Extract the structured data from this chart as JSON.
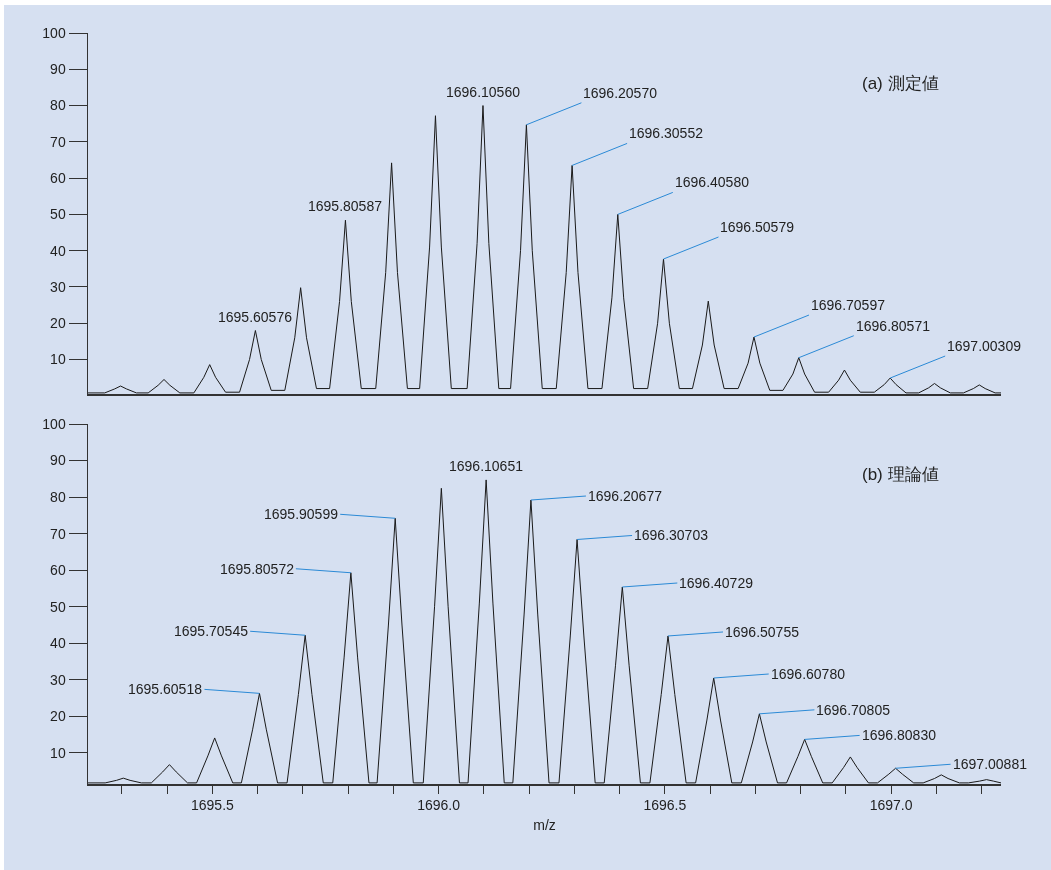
{
  "chart_data": [
    {
      "type": "line",
      "title": "(a) 測定値",
      "xlim": [
        1695.225,
        1697.243
      ],
      "ylim": [
        0.5,
        100
      ],
      "yticks": [
        10,
        20,
        30,
        40,
        50,
        60,
        70,
        80,
        90,
        100
      ],
      "tick_labels": "y",
      "series": [
        {
          "color": "#1a1a1a",
          "x": [
            1695.225,
            1695.262,
            1695.284,
            1695.297,
            1695.31,
            1695.332,
            1695.358,
            1695.38,
            1695.393,
            1695.406,
            1695.428,
            1695.459,
            1695.481,
            1695.494,
            1695.507,
            1695.529,
            1695.56,
            1695.582,
            1695.595,
            1695.608,
            1695.63,
            1695.66,
            1695.682,
            1695.695,
            1695.708,
            1695.73,
            1695.759,
            1695.781,
            1695.794,
            1695.807,
            1695.829,
            1695.861,
            1695.883,
            1695.896,
            1695.909,
            1695.931,
            1695.958,
            1695.98,
            1695.993,
            1696.006,
            1696.028,
            1696.063,
            1696.085,
            1696.098,
            1696.111,
            1696.133,
            1696.159,
            1696.181,
            1696.194,
            1696.207,
            1696.229,
            1696.26,
            1696.282,
            1696.295,
            1696.308,
            1696.33,
            1696.361,
            1696.383,
            1696.396,
            1696.409,
            1696.431,
            1696.462,
            1696.484,
            1696.497,
            1696.51,
            1696.532,
            1696.561,
            1696.583,
            1696.596,
            1696.609,
            1696.631,
            1696.662,
            1696.684,
            1696.697,
            1696.71,
            1696.732,
            1696.761,
            1696.783,
            1696.796,
            1696.809,
            1696.831,
            1696.862,
            1696.884,
            1696.897,
            1696.91,
            1696.932,
            1696.963,
            1696.985,
            1696.998,
            1697.011,
            1697.033,
            1697.061,
            1697.083,
            1697.096,
            1697.109,
            1697.131,
            1697.16,
            1697.182,
            1697.195,
            1697.208,
            1697.23,
            1697.243
          ],
          "values": [
            0.8,
            0.8,
            1.9,
            2.7,
            1.9,
            0.8,
            0.8,
            2.9,
            4.5,
            2.9,
            0.8,
            0.8,
            5.1,
            8.6,
            5.1,
            1.0,
            1.0,
            10.0,
            18.0,
            10.0,
            1.5,
            1.5,
            16.0,
            29.8,
            16.0,
            2.0,
            2.0,
            26.0,
            48.4,
            26.0,
            2.0,
            2.0,
            34.0,
            64.2,
            34.0,
            2.0,
            2.0,
            41.0,
            77.2,
            41.0,
            2.0,
            2.0,
            42.0,
            80.0,
            42.0,
            2.0,
            2.0,
            40.0,
            74.7,
            40.0,
            2.0,
            2.0,
            34.0,
            63.5,
            34.0,
            2.0,
            2.0,
            27.0,
            50.0,
            27.0,
            2.0,
            2.0,
            20.0,
            37.7,
            20.0,
            2.0,
            2.0,
            14.0,
            26.1,
            14.0,
            2.0,
            2.0,
            9.0,
            16.2,
            9.0,
            1.5,
            1.5,
            6.0,
            10.5,
            6.0,
            1.0,
            1.0,
            4.3,
            7.1,
            4.3,
            1.0,
            1.0,
            3.1,
            4.9,
            3.1,
            0.8,
            0.8,
            2.2,
            3.4,
            2.2,
            0.8,
            0.8,
            2.0,
            3.0,
            2.0,
            0.8,
            0.8
          ]
        }
      ],
      "annotations": [
        {
          "text": "1695.60576",
          "x": 1695.595,
          "y": 18.0
        },
        {
          "text": "1695.80587",
          "x": 1695.794,
          "y": 48.4
        },
        {
          "text": "1696.10560",
          "x": 1696.098,
          "y": 80.0
        },
        {
          "text": "1696.20570",
          "x": 1696.194,
          "y": 74.7
        },
        {
          "text": "1696.30552",
          "x": 1696.295,
          "y": 63.5
        },
        {
          "text": "1696.40580",
          "x": 1696.396,
          "y": 50.0
        },
        {
          "text": "1696.50579",
          "x": 1696.497,
          "y": 37.7
        },
        {
          "text": "1696.70597",
          "x": 1696.697,
          "y": 16.2
        },
        {
          "text": "1696.80571",
          "x": 1696.796,
          "y": 10.5
        },
        {
          "text": "1697.00309",
          "x": 1696.998,
          "y": 4.9
        }
      ]
    },
    {
      "type": "line",
      "title": "(b) 理論値",
      "xlabel": "m/z",
      "xlim": [
        1695.225,
        1697.243
      ],
      "ylim": [
        1.5,
        100
      ],
      "yticks": [
        10,
        20,
        30,
        40,
        50,
        60,
        70,
        80,
        90,
        100
      ],
      "xticks": [
        {
          "value": 1695.3,
          "label": null
        },
        {
          "value": 1695.4,
          "label": null
        },
        1695.5,
        {
          "value": 1695.6,
          "label": null
        },
        {
          "value": 1695.7,
          "label": null
        },
        {
          "value": 1695.8,
          "label": null
        },
        {
          "value": 1695.9,
          "label": null
        },
        {
          "value": 1696,
          "label": "1696.0"
        },
        {
          "value": 1696.1,
          "label": null
        },
        {
          "value": 1696.2,
          "label": null
        },
        {
          "value": 1696.3,
          "label": null
        },
        {
          "value": 1696.4,
          "label": null
        },
        1696.5,
        {
          "value": 1696.6,
          "label": null
        },
        {
          "value": 1696.7,
          "label": null
        },
        {
          "value": 1696.8,
          "label": null
        },
        {
          "value": 1696.9,
          "label": null
        },
        {
          "value": 1697,
          "label": "1697.0"
        },
        {
          "value": 1697.1,
          "label": null
        },
        {
          "value": 1697.2,
          "label": null
        }
      ],
      "series": [
        {
          "color": "#1a1a1a",
          "x": [
            1695.225,
            1695.263,
            1695.288,
            1695.303,
            1695.318,
            1695.343,
            1695.365,
            1695.39,
            1695.405,
            1695.42,
            1695.445,
            1695.465,
            1695.49,
            1695.505,
            1695.52,
            1695.545,
            1695.564,
            1695.589,
            1695.604,
            1695.619,
            1695.644,
            1695.665,
            1695.69,
            1695.705,
            1695.72,
            1695.745,
            1695.766,
            1695.791,
            1695.806,
            1695.821,
            1695.846,
            1695.864,
            1695.889,
            1695.904,
            1695.919,
            1695.944,
            1695.966,
            1695.991,
            1696.006,
            1696.021,
            1696.046,
            1696.065,
            1696.09,
            1696.105,
            1696.12,
            1696.145,
            1696.164,
            1696.189,
            1696.204,
            1696.219,
            1696.244,
            1696.266,
            1696.291,
            1696.306,
            1696.321,
            1696.346,
            1696.366,
            1696.391,
            1696.406,
            1696.421,
            1696.446,
            1696.467,
            1696.492,
            1696.507,
            1696.522,
            1696.547,
            1696.568,
            1696.593,
            1696.608,
            1696.623,
            1696.648,
            1696.669,
            1696.694,
            1696.709,
            1696.724,
            1696.749,
            1696.769,
            1696.794,
            1696.809,
            1696.824,
            1696.849,
            1696.87,
            1696.895,
            1696.91,
            1696.925,
            1696.95,
            1696.97,
            1696.995,
            1697.01,
            1697.025,
            1697.05,
            1697.071,
            1697.096,
            1697.111,
            1697.126,
            1697.151,
            1697.171,
            1697.196,
            1697.211,
            1697.226,
            1697.243
          ],
          "values": [
            1.8,
            1.8,
            2.5,
            3.1,
            2.5,
            1.8,
            1.8,
            4.8,
            6.8,
            4.8,
            1.8,
            1.8,
            9.2,
            14.1,
            9.2,
            1.8,
            1.8,
            16.5,
            26.3,
            16.5,
            1.8,
            1.8,
            26.0,
            42.2,
            26.0,
            1.8,
            1.8,
            36.0,
            59.3,
            36.0,
            1.8,
            1.8,
            45.0,
            74.2,
            45.0,
            1.8,
            1.8,
            50.0,
            82.4,
            50.0,
            1.8,
            1.8,
            51.0,
            84.7,
            51.0,
            1.8,
            1.8,
            48.0,
            79.2,
            48.0,
            1.8,
            1.8,
            42.0,
            68.4,
            42.0,
            1.8,
            1.8,
            34.0,
            55.4,
            34.0,
            1.8,
            1.8,
            26.0,
            42.0,
            26.0,
            1.8,
            1.8,
            19.0,
            30.5,
            19.0,
            1.8,
            1.8,
            13.0,
            20.7,
            13.0,
            1.8,
            1.8,
            9.0,
            13.7,
            9.0,
            1.8,
            1.8,
            6.0,
            8.9,
            6.0,
            1.8,
            1.8,
            4.2,
            5.8,
            4.2,
            1.8,
            1.8,
            3.0,
            4.0,
            3.0,
            1.8,
            1.8,
            2.3,
            2.7,
            2.3,
            1.8
          ]
        }
      ],
      "annotations": [
        {
          "text": "1695.60518",
          "x": 1695.604,
          "y": 26.3
        },
        {
          "text": "1695.70545",
          "x": 1695.705,
          "y": 42.2
        },
        {
          "text": "1695.80572",
          "x": 1695.806,
          "y": 59.3
        },
        {
          "text": "1695.90599",
          "x": 1695.904,
          "y": 74.2
        },
        {
          "text": "1696.10651",
          "x": 1696.105,
          "y": 84.7
        },
        {
          "text": "1696.20677",
          "x": 1696.204,
          "y": 79.2
        },
        {
          "text": "1696.30703",
          "x": 1696.306,
          "y": 68.4
        },
        {
          "text": "1696.40729",
          "x": 1696.406,
          "y": 55.4
        },
        {
          "text": "1696.50755",
          "x": 1696.507,
          "y": 42.0
        },
        {
          "text": "1696.60780",
          "x": 1696.608,
          "y": 30.5
        },
        {
          "text": "1696.70805",
          "x": 1696.709,
          "y": 20.7
        },
        {
          "text": "1696.80830",
          "x": 1696.809,
          "y": 13.7
        },
        {
          "text": "1697.00881",
          "x": 1697.01,
          "y": 5.8
        }
      ]
    }
  ]
}
